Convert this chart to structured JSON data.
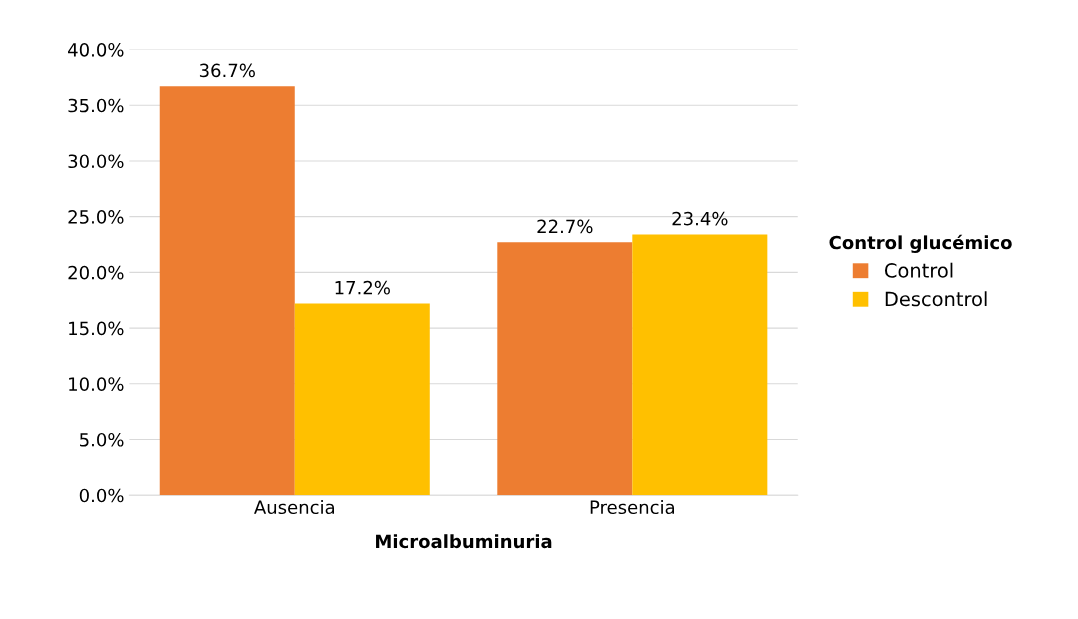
{
  "chart_data": {
    "type": "bar",
    "xlabel": "Microalbuminuria",
    "legend_title": "Control glucémico",
    "categories": [
      "Ausencia",
      "Presencia"
    ],
    "series": [
      {
        "name": "Control",
        "color": "#ed7d31",
        "values": [
          36.7,
          22.7
        ],
        "value_labels": [
          "36.7%",
          "22.7%"
        ]
      },
      {
        "name": "Descontrol",
        "color": "#ffc000",
        "values": [
          17.2,
          23.4
        ],
        "value_labels": [
          "17.2%",
          "23.4%"
        ]
      }
    ],
    "ylim": [
      0,
      40
    ],
    "yticks": [
      {
        "value": 0,
        "label": "0.0%"
      },
      {
        "value": 5,
        "label": "5.0%"
      },
      {
        "value": 10,
        "label": "10.0%"
      },
      {
        "value": 15,
        "label": "15.0%"
      },
      {
        "value": 20,
        "label": "20.0%"
      },
      {
        "value": 25,
        "label": "25.0%"
      },
      {
        "value": 30,
        "label": "30.0%"
      },
      {
        "value": 35,
        "label": "35.0%"
      },
      {
        "value": 40,
        "label": "40.0%"
      }
    ],
    "grid": "y",
    "legend": "right"
  }
}
